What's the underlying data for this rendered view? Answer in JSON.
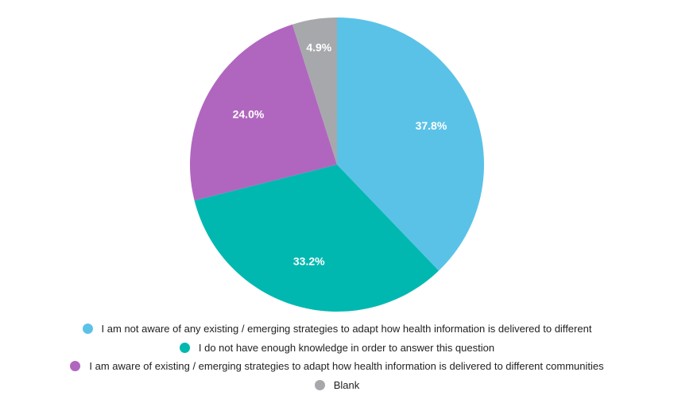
{
  "chart_data": {
    "type": "pie",
    "title": "",
    "legend_position": "bottom",
    "slices": [
      {
        "label": "I am not aware of any existing / emerging strategies to adapt how health information is delivered to different",
        "value": 37.8,
        "display": "37.8%",
        "color": "#5bc2e7"
      },
      {
        "label": "I do not have enough knowledge in order to answer this question",
        "value": 33.2,
        "display": "33.2%",
        "color": "#00b8b0"
      },
      {
        "label": "I am aware of existing / emerging strategies to adapt how health information is delivered to different communities",
        "value": 24.0,
        "display": "24.0%",
        "color": "#b066bf"
      },
      {
        "label": "Blank",
        "value": 4.9,
        "display": "4.9%",
        "color": "#a7a8ab"
      }
    ]
  }
}
